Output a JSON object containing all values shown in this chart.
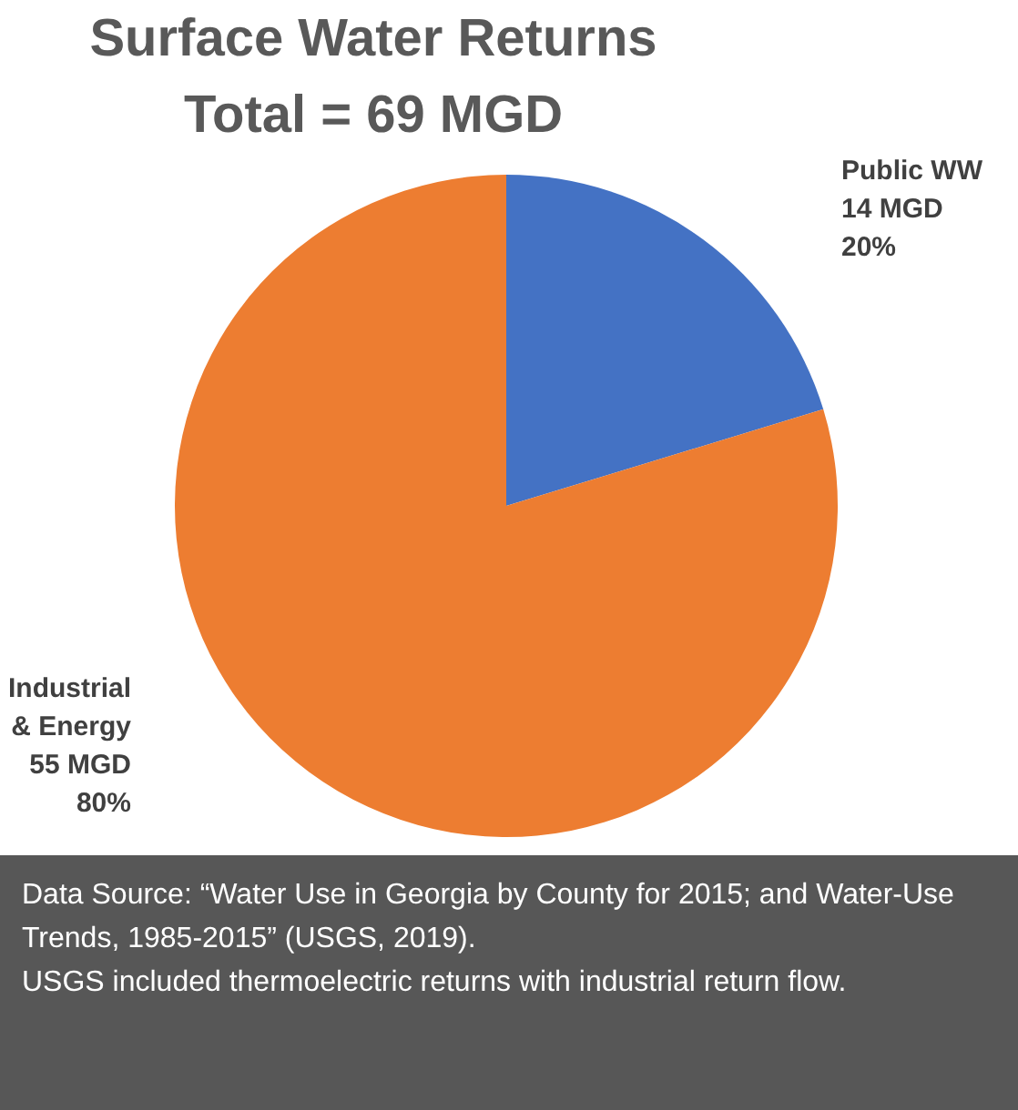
{
  "chart_data": {
    "type": "pie",
    "title": "Surface Water Returns",
    "subtitle": "Total = 69 MGD",
    "categories": [
      "Public WW",
      "Industrial\n& Energy"
    ],
    "values": [
      14,
      55
    ],
    "colors": [
      "#4472c4",
      "#ed7d31"
    ],
    "value_labels": [
      "14 MGD\n20%",
      "55 MGD\n80%"
    ],
    "legend": false,
    "annotations": [
      "Data Source: “Water Use in Georgia by County for 2015; and Water-Use Trends, 1985-2015” (USGS, 2019).",
      "USGS included thermoelectric returns with industrial return flow."
    ]
  }
}
